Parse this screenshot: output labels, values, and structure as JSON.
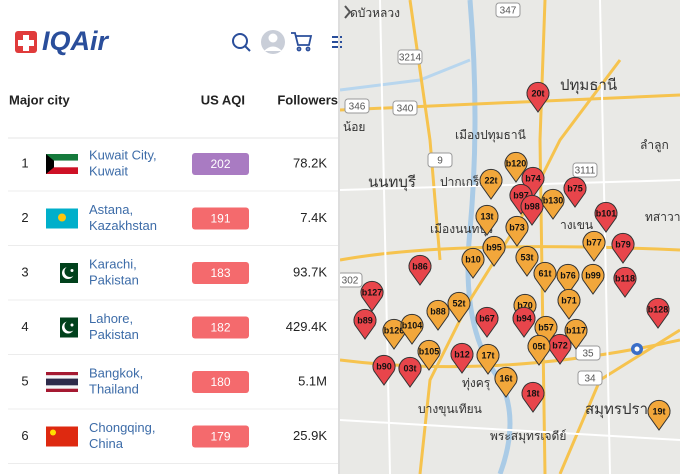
{
  "header": {
    "logo": "IQAir"
  },
  "table": {
    "columns": [
      "Major city",
      "US AQI",
      "Followers"
    ],
    "rows": [
      {
        "rank": 1,
        "city": "Kuwait City,",
        "country": "Kuwait",
        "aqi": 202,
        "aqi_color": "#a97bc2",
        "followers": "78.2K"
      },
      {
        "rank": 2,
        "city": "Astana,",
        "country": "Kazakhstan",
        "aqi": 191,
        "aqi_color": "#f46a6d",
        "followers": "7.4K"
      },
      {
        "rank": 3,
        "city": "Karachi,",
        "country": "Pakistan",
        "aqi": 183,
        "aqi_color": "#f46a6d",
        "followers": "93.7K"
      },
      {
        "rank": 4,
        "city": "Lahore,",
        "country": "Pakistan",
        "aqi": 182,
        "aqi_color": "#f46a6d",
        "followers": "429.4K"
      },
      {
        "rank": 5,
        "city": "Bangkok,",
        "country": "Thailand",
        "aqi": 180,
        "aqi_color": "#f46a6d",
        "followers": "5.1M"
      },
      {
        "rank": 6,
        "city": "Chongqing,",
        "country": "China",
        "aqi": 179,
        "aqi_color": "#f46a6d",
        "followers": "25.9K"
      }
    ]
  },
  "map": {
    "places": [
      "ดบัวหลวง",
      "ปทุมธานี",
      "เมืองปทุมธานี",
      "ลำลูก",
      "นนทบุรี",
      "ปากเกร็ด",
      "เมืองนนทบุรี",
      "างเขน",
      "ทสาวา",
      "น้อย",
      "ทุ่งครุ",
      "บางขุนเทียน",
      "สมุทรปราก",
      "พระสมุทรเจดีย์"
    ],
    "road_numbers": [
      "347",
      "346",
      "3214",
      "340",
      "3111",
      "9",
      "35",
      "34",
      "302"
    ],
    "markers": [
      {
        "label": "20t",
        "color": "#e8454b"
      },
      {
        "label": "b120",
        "color": "#f2a73b"
      },
      {
        "label": "22t",
        "color": "#f2a73b"
      },
      {
        "label": "b74",
        "color": "#e8454b"
      },
      {
        "label": "b97",
        "color": "#e8454b"
      },
      {
        "label": "b98",
        "color": "#e8454b"
      },
      {
        "label": "b130",
        "color": "#f2a73b"
      },
      {
        "label": "b75",
        "color": "#e8454b"
      },
      {
        "label": "b101",
        "color": "#e8454b"
      },
      {
        "label": "13t",
        "color": "#f2a73b"
      },
      {
        "label": "b73",
        "color": "#f2a73b"
      },
      {
        "label": "b95",
        "color": "#f2a73b"
      },
      {
        "label": "b77",
        "color": "#f2a73b"
      },
      {
        "label": "b79",
        "color": "#e8454b"
      },
      {
        "label": "b86",
        "color": "#e8454b"
      },
      {
        "label": "b10",
        "color": "#f2a73b"
      },
      {
        "label": "53t",
        "color": "#f2a73b"
      },
      {
        "label": "61t",
        "color": "#f2a73b"
      },
      {
        "label": "b76",
        "color": "#f2a73b"
      },
      {
        "label": "b99",
        "color": "#f2a73b"
      },
      {
        "label": "b118",
        "color": "#e8454b"
      },
      {
        "label": "b127",
        "color": "#e8454b"
      },
      {
        "label": "b71",
        "color": "#f2a73b"
      },
      {
        "label": "b88",
        "color": "#f2a73b"
      },
      {
        "label": "52t",
        "color": "#f2a73b"
      },
      {
        "label": "b70",
        "color": "#f2a73b"
      },
      {
        "label": "b128",
        "color": "#e8454b"
      },
      {
        "label": "b89",
        "color": "#e8454b"
      },
      {
        "label": "b126",
        "color": "#f2a73b"
      },
      {
        "label": "b104",
        "color": "#f2a73b"
      },
      {
        "label": "b67",
        "color": "#e8454b"
      },
      {
        "label": "b94",
        "color": "#e8454b"
      },
      {
        "label": "b57",
        "color": "#f2a73b"
      },
      {
        "label": "b117",
        "color": "#f2a73b"
      },
      {
        "label": "b105",
        "color": "#f2a73b"
      },
      {
        "label": "b72",
        "color": "#e8454b"
      },
      {
        "label": "05t",
        "color": "#f2a73b"
      },
      {
        "label": "b12",
        "color": "#e8454b"
      },
      {
        "label": "17t",
        "color": "#f2a73b"
      },
      {
        "label": "b90",
        "color": "#e8454b"
      },
      {
        "label": "03t",
        "color": "#e8454b"
      },
      {
        "label": "16t",
        "color": "#f2a73b"
      },
      {
        "label": "18t",
        "color": "#e8454b"
      },
      {
        "label": "19t",
        "color": "#f2a73b"
      }
    ]
  }
}
